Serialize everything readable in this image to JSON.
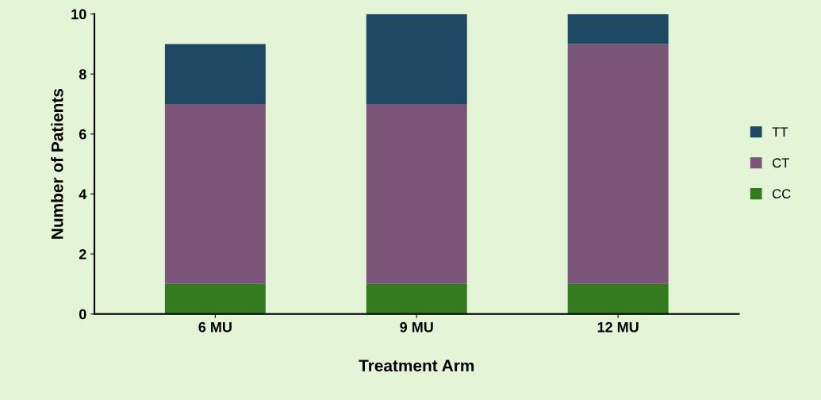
{
  "chart_data": {
    "type": "bar",
    "stacked": true,
    "xlabel": "Treatment Arm",
    "ylabel": "Number of Patients",
    "categories": [
      "6 MU",
      "9 MU",
      "12 MU"
    ],
    "series": [
      {
        "name": "CC",
        "color": "#347a1e",
        "values": [
          1,
          1,
          1
        ]
      },
      {
        "name": "CT",
        "color": "#7b5578",
        "values": [
          6,
          6,
          8
        ]
      },
      {
        "name": "TT",
        "color": "#1f4863",
        "values": [
          2,
          3,
          1
        ]
      }
    ],
    "ylim": [
      0,
      10
    ],
    "yticks": [
      0,
      2,
      4,
      6,
      8,
      10
    ],
    "grid": false,
    "legend": "right"
  }
}
